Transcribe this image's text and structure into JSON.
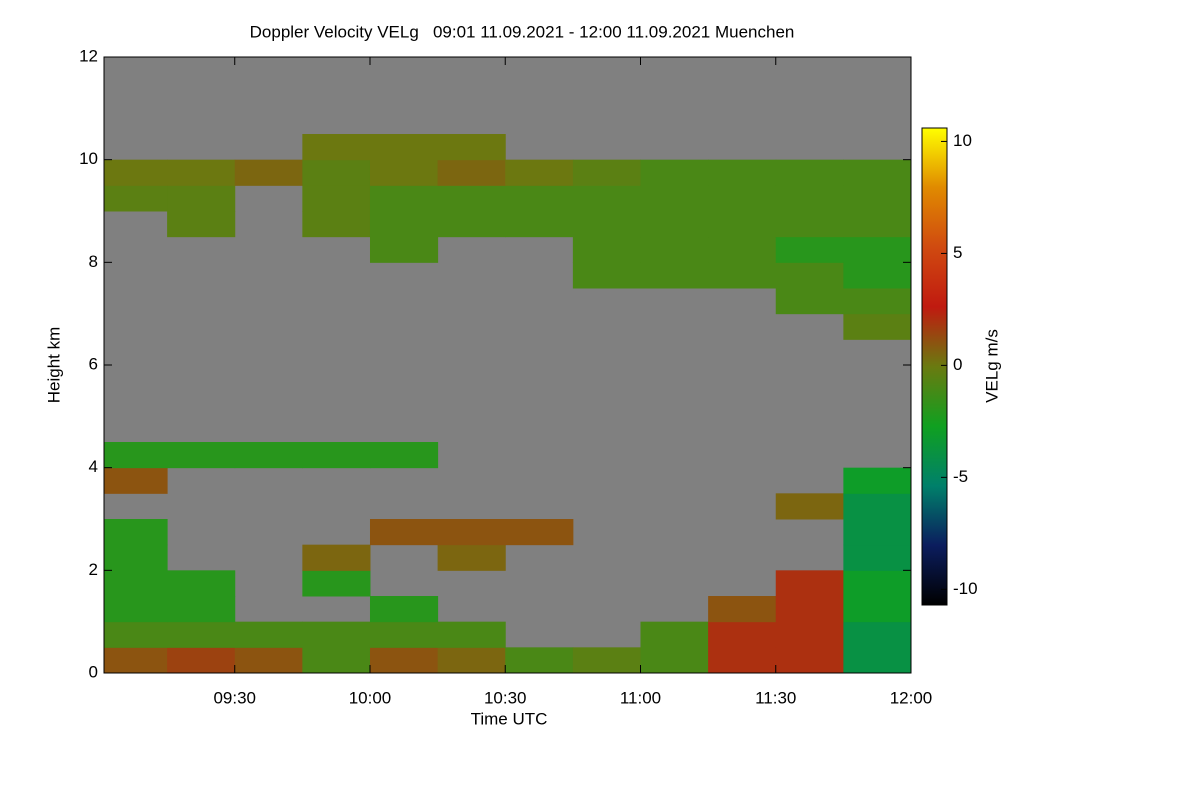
{
  "chart_data": {
    "type": "heatmap",
    "title": "Doppler Velocity VELg   09:01 11.09.2021 - 12:00 11.09.2021 Muenchen",
    "xlabel": "Time UTC",
    "ylabel": "Height km",
    "colorbar_label": "VELg m/s",
    "xlim": [
      9.0167,
      12
    ],
    "xticks": [
      {
        "value": 9.5,
        "label": "09:30"
      },
      {
        "value": 10,
        "label": "10:00"
      },
      {
        "value": 10.5,
        "label": "10:30"
      },
      {
        "value": 11,
        "label": "11:00"
      },
      {
        "value": 11.5,
        "label": "11:30"
      },
      {
        "value": 12,
        "label": "12:00"
      }
    ],
    "ylim": [
      0,
      12
    ],
    "yticks": [
      0,
      2,
      4,
      6,
      8,
      10,
      12
    ],
    "zlim": [
      -10.7,
      10.6
    ],
    "zticks": [
      -10,
      -5,
      0,
      5,
      10
    ],
    "colormap": [
      "#000000",
      "#0b1d5e",
      "#00806a",
      "#10a020",
      "#6a7a10",
      "#c01a10",
      "#d04a10",
      "#e08a00",
      "#ffff00"
    ],
    "missing_color": "#808080",
    "xbins": [
      9.0167,
      9.25,
      9.5,
      9.75,
      10,
      10.25,
      10.5,
      10.75,
      11,
      11.25,
      11.5,
      11.75,
      12
    ],
    "ybins": [
      0,
      0.5,
      1,
      1.5,
      2,
      2.5,
      3,
      3.5,
      4,
      4.5,
      5,
      5.5,
      6,
      6.5,
      7,
      7.5,
      8,
      8.5,
      9,
      9.5,
      10,
      10.5,
      11,
      11.5,
      12
    ],
    "z": [
      [
        1,
        1.5,
        1,
        -1,
        1,
        0.5,
        -1,
        -0.5,
        -1,
        2,
        2,
        -4
      ],
      [
        -1,
        -1,
        -1,
        -1,
        -1,
        -1,
        null,
        null,
        -1,
        2,
        2,
        -4
      ],
      [
        -2,
        -2,
        null,
        null,
        -2,
        null,
        null,
        null,
        null,
        1,
        2,
        -3
      ],
      [
        -2,
        -2,
        null,
        -2,
        null,
        null,
        null,
        null,
        null,
        null,
        2,
        -3
      ],
      [
        -2,
        null,
        null,
        0.5,
        null,
        0.5,
        null,
        null,
        null,
        null,
        null,
        -4
      ],
      [
        -2,
        null,
        null,
        null,
        1,
        1,
        1,
        null,
        null,
        null,
        null,
        -4
      ],
      [
        null,
        null,
        null,
        null,
        null,
        null,
        null,
        null,
        null,
        null,
        0.5,
        -4
      ],
      [
        1,
        null,
        null,
        null,
        null,
        null,
        null,
        null,
        null,
        null,
        null,
        -3
      ],
      [
        -2,
        -2,
        -2,
        -2,
        -2,
        null,
        null,
        null,
        null,
        null,
        null,
        null
      ],
      [
        null,
        null,
        null,
        null,
        null,
        null,
        null,
        null,
        null,
        null,
        null,
        null
      ],
      [
        null,
        null,
        null,
        null,
        null,
        null,
        null,
        null,
        null,
        null,
        null,
        null
      ],
      [
        null,
        null,
        null,
        null,
        null,
        null,
        null,
        null,
        null,
        null,
        null,
        null
      ],
      [
        null,
        null,
        null,
        null,
        null,
        null,
        null,
        null,
        null,
        null,
        null,
        null
      ],
      [
        null,
        null,
        null,
        null,
        null,
        null,
        null,
        null,
        null,
        null,
        null,
        -0.5
      ],
      [
        null,
        null,
        null,
        null,
        null,
        null,
        null,
        null,
        null,
        null,
        -1,
        -1
      ],
      [
        null,
        null,
        null,
        null,
        null,
        null,
        null,
        -1,
        -1,
        -1,
        -1,
        -2
      ],
      [
        null,
        null,
        null,
        null,
        -1,
        null,
        null,
        -1,
        -1,
        -1,
        -2,
        -2
      ],
      [
        null,
        -0.5,
        null,
        -0.5,
        -1,
        -1,
        -1,
        -1,
        -1,
        -1,
        -1,
        -1
      ],
      [
        -0.5,
        -0.5,
        null,
        -0.5,
        -1,
        -1,
        -1,
        -1,
        -1,
        -1,
        -1,
        -1
      ],
      [
        0,
        0,
        0.5,
        -0.5,
        0,
        0.5,
        0,
        -0.5,
        -1,
        -1,
        -1,
        -1
      ],
      [
        null,
        null,
        null,
        0,
        0,
        0,
        null,
        null,
        null,
        null,
        null,
        null
      ],
      [
        null,
        null,
        null,
        null,
        null,
        null,
        null,
        null,
        null,
        null,
        null,
        null
      ],
      [
        null,
        null,
        null,
        null,
        null,
        null,
        null,
        null,
        null,
        null,
        null,
        null
      ],
      [
        null,
        null,
        null,
        null,
        null,
        null,
        null,
        null,
        null,
        null,
        null,
        null
      ]
    ]
  }
}
